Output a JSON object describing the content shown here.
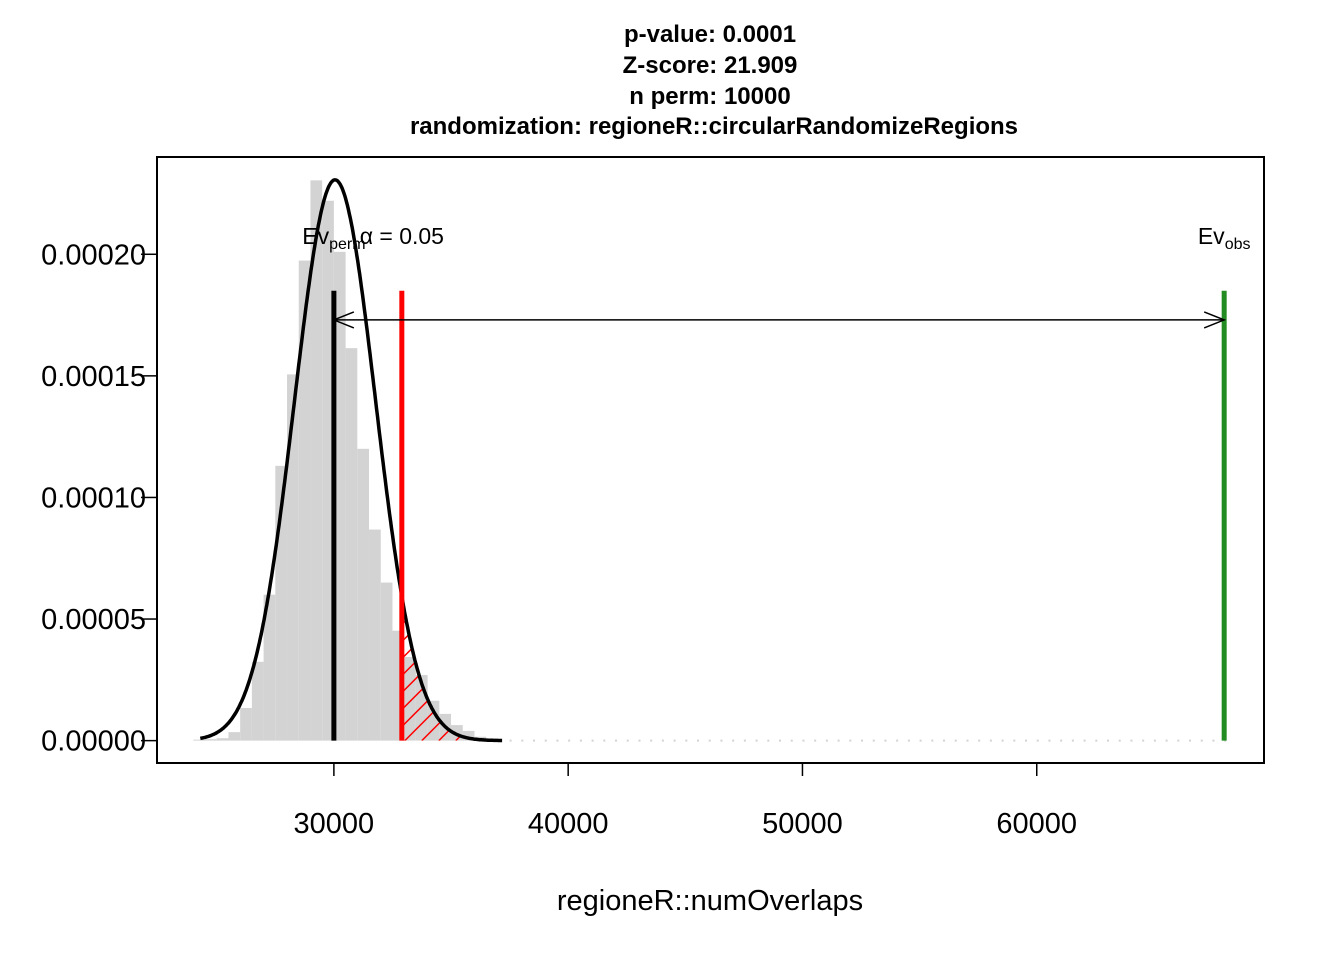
{
  "chart_data": {
    "type": "bar",
    "title_lines": [
      "p-value:  0.0001",
      "Z-score:  21.909",
      "n perm:  10000",
      "randomization:  regioneR::circularRandomizeRegions"
    ],
    "xlabel": "regioneR::numOverlaps",
    "ylabel": "",
    "xlim": [
      22450,
      69700
    ],
    "ylim": [
      -9.2e-06,
      0.00024
    ],
    "x_ticks": [
      30000,
      40000,
      50000,
      60000
    ],
    "x_tick_labels": [
      "30000",
      "40000",
      "50000",
      "60000"
    ],
    "y_ticks": [
      0.0,
      5e-05,
      0.0001,
      0.00015,
      0.0002
    ],
    "y_tick_labels": [
      "0.00000",
      "0.00005",
      "0.00010",
      "0.00015",
      "0.00020"
    ],
    "histogram": {
      "bin_width": 500,
      "bin_starts": [
        24000,
        24500,
        25000,
        25500,
        26000,
        26500,
        27000,
        27500,
        28000,
        28500,
        29000,
        29500,
        30000,
        30500,
        31000,
        31500,
        32000,
        32500,
        33000,
        33500,
        34000,
        34500,
        35000,
        35500,
        36000,
        36500
      ],
      "densities": [
        4e-07,
        6e-07,
        1e-06,
        3.5e-06,
        1.34e-05,
        3.24e-05,
        6e-05,
        0.000113,
        0.0001506,
        0.0001974,
        0.0002304,
        0.000222,
        0.000201,
        0.0001614,
        0.00012,
        8.68e-05,
        6.5e-05,
        4.52e-05,
        3.44e-05,
        2.7e-05,
        1.64e-05,
        1.1e-05,
        6.4e-06,
        4e-06,
        1.6e-06,
        6e-07
      ],
      "color": "#d3d3d3"
    },
    "density_curve": {
      "mean": 30050,
      "sd": 1730,
      "x_start": 24300,
      "x_end": 37200,
      "color": "#000000"
    },
    "rejection_region": {
      "from": 32900,
      "to": 37200,
      "color": "#ff0000"
    },
    "reference_lines": [
      {
        "x": 30000,
        "y_top": 0.000185,
        "color": "#000000",
        "label_main": "Ev",
        "label_sub": "perm"
      },
      {
        "x": 32900,
        "y_top": 0.000185,
        "color": "#ff0000",
        "label_main": "α = 0.05",
        "label_sub": ""
      },
      {
        "x": 68000,
        "y_top": 0.000185,
        "color": "#228b22",
        "label_main": "Ev",
        "label_sub": "obs"
      }
    ],
    "arrow": {
      "x_from": 30000,
      "x_to": 68000,
      "y": 0.000173,
      "color": "#000000"
    },
    "grid": false,
    "legend": "none"
  }
}
